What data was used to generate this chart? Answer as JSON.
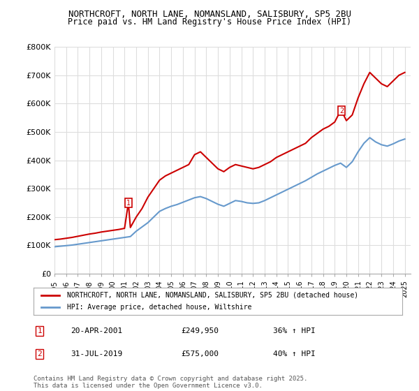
{
  "title1": "NORTHCROFT, NORTH LANE, NOMANSLAND, SALISBURY, SP5 2BU",
  "title2": "Price paid vs. HM Land Registry's House Price Index (HPI)",
  "legend1": "NORTHCROFT, NORTH LANE, NOMANSLAND, SALISBURY, SP5 2BU (detached house)",
  "legend2": "HPI: Average price, detached house, Wiltshire",
  "annotation1_label": "1",
  "annotation1_date": "20-APR-2001",
  "annotation1_price": "£249,950",
  "annotation1_hpi": "36% ↑ HPI",
  "annotation2_label": "2",
  "annotation2_date": "31-JUL-2019",
  "annotation2_price": "£575,000",
  "annotation2_hpi": "40% ↑ HPI",
  "footer": "Contains HM Land Registry data © Crown copyright and database right 2025.\nThis data is licensed under the Open Government Licence v3.0.",
  "red_color": "#cc0000",
  "blue_color": "#6699cc",
  "background": "#ffffff",
  "grid_color": "#dddddd",
  "ylim": [
    0,
    800000
  ],
  "xlim_start": 1995.0,
  "xlim_end": 2025.5,
  "red_x": [
    1995.0,
    1995.5,
    1996.0,
    1996.5,
    1997.0,
    1997.5,
    1998.0,
    1998.5,
    1999.0,
    1999.5,
    2000.0,
    2000.5,
    2001.0,
    2001.33,
    2001.5,
    2002.0,
    2002.5,
    2003.0,
    2003.5,
    2004.0,
    2004.5,
    2005.0,
    2005.5,
    2006.0,
    2006.5,
    2007.0,
    2007.5,
    2008.0,
    2008.5,
    2009.0,
    2009.5,
    2010.0,
    2010.5,
    2011.0,
    2011.5,
    2012.0,
    2012.5,
    2013.0,
    2013.5,
    2014.0,
    2014.5,
    2015.0,
    2015.5,
    2016.0,
    2016.5,
    2017.0,
    2017.5,
    2018.0,
    2018.5,
    2019.0,
    2019.5,
    2019.58,
    2020.0,
    2020.5,
    2021.0,
    2021.5,
    2022.0,
    2022.5,
    2023.0,
    2023.5,
    2024.0,
    2024.5,
    2025.0
  ],
  "red_y": [
    120000,
    122000,
    125000,
    128000,
    132000,
    136000,
    140000,
    143000,
    147000,
    150000,
    153000,
    156000,
    160000,
    249950,
    163000,
    200000,
    230000,
    270000,
    300000,
    330000,
    345000,
    355000,
    365000,
    375000,
    385000,
    420000,
    430000,
    410000,
    390000,
    370000,
    360000,
    375000,
    385000,
    380000,
    375000,
    370000,
    375000,
    385000,
    395000,
    410000,
    420000,
    430000,
    440000,
    450000,
    460000,
    480000,
    495000,
    510000,
    520000,
    535000,
    575000,
    575000,
    540000,
    560000,
    620000,
    670000,
    710000,
    690000,
    670000,
    660000,
    680000,
    700000,
    710000
  ],
  "blue_x": [
    1995.0,
    1995.5,
    1996.0,
    1996.5,
    1997.0,
    1997.5,
    1998.0,
    1998.5,
    1999.0,
    1999.5,
    2000.0,
    2000.5,
    2001.0,
    2001.5,
    2002.0,
    2002.5,
    2003.0,
    2003.5,
    2004.0,
    2004.5,
    2005.0,
    2005.5,
    2006.0,
    2006.5,
    2007.0,
    2007.5,
    2008.0,
    2008.5,
    2009.0,
    2009.5,
    2010.0,
    2010.5,
    2011.0,
    2011.5,
    2012.0,
    2012.5,
    2013.0,
    2013.5,
    2014.0,
    2014.5,
    2015.0,
    2015.5,
    2016.0,
    2016.5,
    2017.0,
    2017.5,
    2018.0,
    2018.5,
    2019.0,
    2019.5,
    2020.0,
    2020.5,
    2021.0,
    2021.5,
    2022.0,
    2022.5,
    2023.0,
    2023.5,
    2024.0,
    2024.5,
    2025.0
  ],
  "blue_y": [
    95000,
    97000,
    99000,
    101000,
    104000,
    107000,
    110000,
    113000,
    116000,
    119000,
    122000,
    125000,
    128000,
    131000,
    150000,
    165000,
    180000,
    200000,
    220000,
    230000,
    238000,
    244000,
    252000,
    260000,
    268000,
    272000,
    265000,
    255000,
    245000,
    238000,
    248000,
    258000,
    255000,
    250000,
    248000,
    250000,
    258000,
    268000,
    278000,
    288000,
    298000,
    308000,
    318000,
    328000,
    340000,
    352000,
    362000,
    372000,
    382000,
    390000,
    375000,
    395000,
    430000,
    460000,
    480000,
    465000,
    455000,
    450000,
    458000,
    468000,
    475000
  ]
}
